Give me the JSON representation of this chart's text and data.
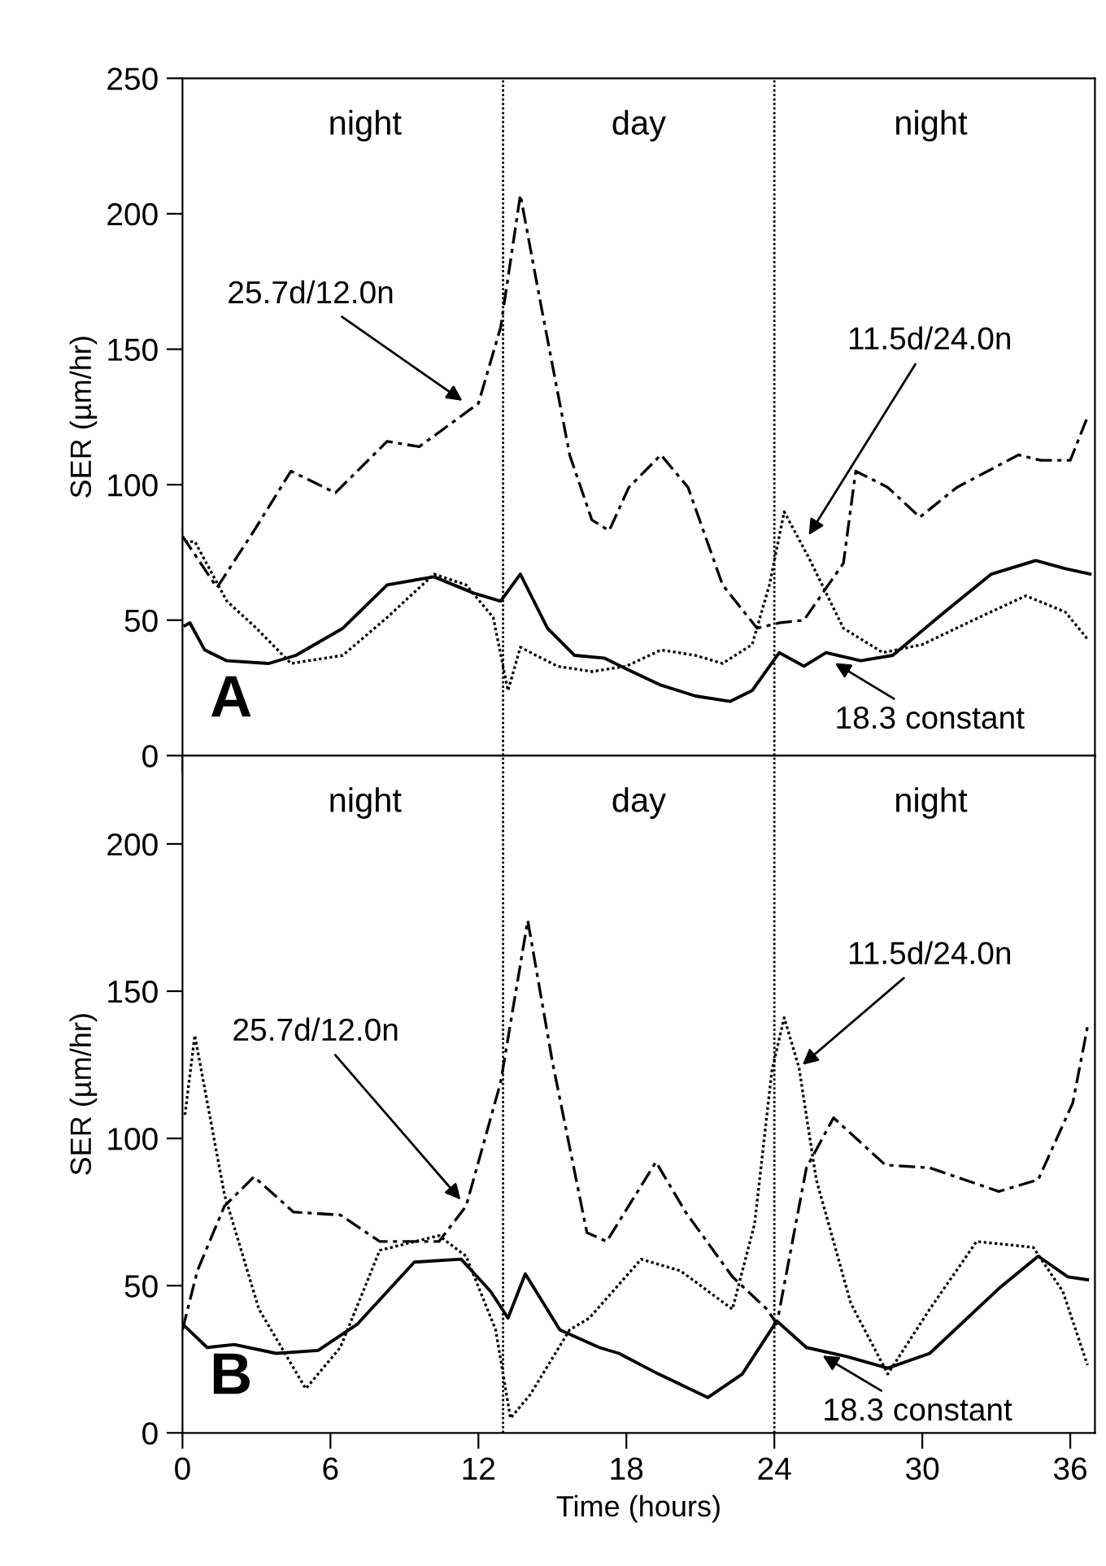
{
  "chart_data": [
    {
      "type": "line",
      "ylabel": "SER (µm/hr)",
      "xlim": [
        0,
        37
      ],
      "ylim": [
        0,
        250
      ],
      "xticks": [
        0,
        6,
        12,
        18,
        24,
        30,
        36
      ],
      "yticks": [
        0,
        50,
        100,
        150,
        200,
        250
      ],
      "tick_labels": "y",
      "grid": false,
      "legend": false,
      "marker": "none",
      "series": [
        {
          "color": "#000000",
          "line_style": "dashed",
          "x": [
            0,
            1.4,
            2.9,
            4.4,
            6.2,
            8.3,
            9.6,
            12.0,
            12.9,
            13.7,
            14.5,
            15.7,
            16.6,
            17.3,
            18.1,
            19.4,
            20.5,
            21.9,
            23.3,
            24.2,
            25.2,
            26.8,
            27.3,
            28.6,
            29.9,
            31.4,
            33.9,
            34.8,
            36.0,
            36.7
          ],
          "values": [
            81,
            62,
            83,
            105,
            97,
            116,
            114,
            130,
            158,
            207,
            168,
            111,
            87,
            83,
            99,
            111,
            99,
            63,
            47,
            49,
            50,
            71,
            105,
            99,
            88,
            99,
            111,
            109,
            109,
            125
          ]
        },
        {
          "color": "#000000",
          "line_style": "dotted",
          "x": [
            0.1,
            0.5,
            1.8,
            3.0,
            4.4,
            6.5,
            8.3,
            10.2,
            11.5,
            12.6,
            13.2,
            13.7,
            15.2,
            16.6,
            18.0,
            19.4,
            20.8,
            21.9,
            23.1,
            23.8,
            24.4,
            25.4,
            26.8,
            28.4,
            30.0,
            32.3,
            34.2,
            35.8,
            36.7
          ],
          "values": [
            79,
            79,
            57,
            47,
            34,
            37,
            51,
            67,
            63,
            51,
            24,
            40,
            33,
            31,
            33,
            39,
            37,
            34,
            41,
            63,
            90,
            73,
            47,
            38,
            41,
            51,
            59,
            53,
            43
          ]
        },
        {
          "color": "#000000",
          "line_style": "solid",
          "x": [
            0.1,
            0.3,
            0.9,
            1.8,
            3.5,
            4.6,
            6.5,
            8.3,
            10.2,
            11.8,
            12.9,
            13.7,
            14.8,
            15.9,
            17.1,
            18.0,
            19.4,
            20.8,
            22.2,
            23.1,
            24.2,
            25.2,
            26.1,
            27.5,
            28.8,
            30.9,
            32.8,
            34.6,
            35.8,
            36.8
          ],
          "values": [
            48,
            49,
            39,
            35,
            34,
            37,
            47,
            63,
            66,
            60,
            57,
            67,
            47,
            37,
            36,
            32,
            26,
            22,
            20,
            24,
            38,
            33,
            38,
            35,
            37,
            53,
            67,
            72,
            69,
            67
          ]
        }
      ],
      "ref_lines": [
        {
          "axis": "x",
          "value": 13,
          "line_style": "dotted",
          "color": "#000000"
        },
        {
          "axis": "x",
          "value": 24,
          "line_style": "dotted",
          "color": "#000000"
        }
      ],
      "annotations": [
        "night",
        "day",
        "night",
        "A",
        {
          "text": "25.7d/12.0n",
          "x": 11.5,
          "y": 130
        },
        {
          "text": "11.5d/24.0n",
          "x": 25.3,
          "y": 80
        },
        {
          "text": "18.3 constant",
          "x": 26.3,
          "y": 35
        }
      ]
    },
    {
      "type": "line",
      "ylabel": "SER (µm/hr)",
      "xlabel": "Time (hours)",
      "xlim": [
        0,
        37
      ],
      "ylim": [
        0,
        230
      ],
      "xticks": [
        0,
        6,
        12,
        18,
        24,
        30,
        36
      ],
      "yticks": [
        0,
        50,
        100,
        150,
        200
      ],
      "grid": false,
      "legend": false,
      "marker": "none",
      "series": [
        {
          "color": "#000000",
          "line_style": "dashed",
          "x": [
            0,
            0.6,
            1.7,
            2.9,
            4.5,
            6.4,
            8.0,
            10.4,
            11.5,
            12.9,
            14.0,
            15.0,
            16.4,
            17.2,
            19.2,
            20.4,
            22.3,
            23.7,
            24.1,
            25.3,
            26.4,
            28.5,
            30.3,
            33.1,
            34.7,
            36.1,
            36.7
          ],
          "values": [
            35,
            55,
            77,
            87,
            75,
            74,
            65,
            65,
            77,
            119,
            174,
            126,
            68,
            65,
            92,
            75,
            53,
            42,
            37,
            90,
            107,
            91,
            90,
            82,
            86,
            112,
            138
          ]
        },
        {
          "color": "#000000",
          "line_style": "dotted",
          "x": [
            0.1,
            0.5,
            1.7,
            3.1,
            5.0,
            6.4,
            8.0,
            10.4,
            11.5,
            12.7,
            13.3,
            14.1,
            15.7,
            16.5,
            18.6,
            20.2,
            22.3,
            23.2,
            23.9,
            24.4,
            25.0,
            25.7,
            27.1,
            28.6,
            30.3,
            32.2,
            34.5,
            35.7,
            36.7
          ],
          "values": [
            108,
            135,
            81,
            42,
            15,
            29,
            62,
            67,
            60,
            35,
            5,
            13,
            35,
            39,
            59,
            55,
            42,
            71,
            123,
            141,
            124,
            86,
            44,
            20,
            42,
            65,
            63,
            48,
            23
          ]
        },
        {
          "color": "#000000",
          "line_style": "solid",
          "x": [
            0,
            1.0,
            2.1,
            3.8,
            5.5,
            7.1,
            9.4,
            11.3,
            12.5,
            13.2,
            13.9,
            15.3,
            16.9,
            17.7,
            19.3,
            21.3,
            22.7,
            24.1,
            25.3,
            26.9,
            28.6,
            30.3,
            33.1,
            34.7,
            35.9,
            36.7
          ],
          "values": [
            37,
            29,
            30,
            27,
            28,
            37,
            58,
            59,
            48,
            39,
            54,
            35,
            29,
            27,
            20,
            12,
            20,
            38,
            29,
            26,
            22,
            27,
            49,
            60,
            53,
            52
          ]
        }
      ],
      "ref_lines": [
        {
          "axis": "x",
          "value": 13,
          "line_style": "dotted",
          "color": "#000000"
        },
        {
          "axis": "x",
          "value": 24,
          "line_style": "dotted",
          "color": "#000000"
        }
      ],
      "annotations": [
        "night",
        "day",
        "night",
        "B",
        {
          "text": "25.7d/12.0n",
          "x": 11.4,
          "y": 78
        },
        {
          "text": "11.5d/24.0n",
          "x": 25.0,
          "y": 124
        },
        {
          "text": "18.3 constant",
          "x": 25.8,
          "y": 27
        }
      ]
    }
  ]
}
